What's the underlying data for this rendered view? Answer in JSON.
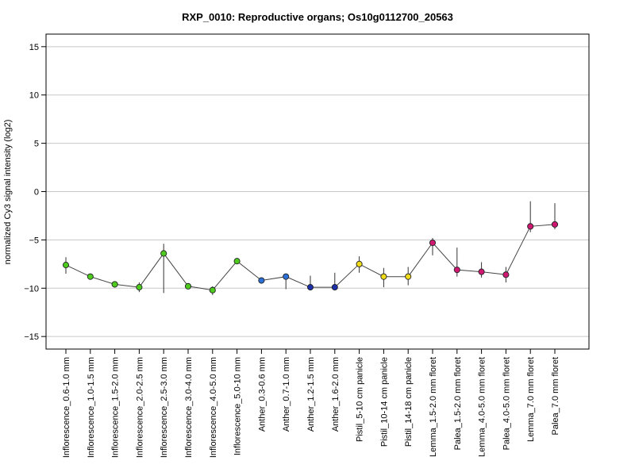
{
  "chart_data": {
    "type": "line",
    "title": "RXP_0010: Reproductive organs; Os10g0112700_20563",
    "xlabel": "",
    "ylabel": "normalized Cy3 signal intensity (log2)",
    "ylim": [
      -16.3,
      16.3
    ],
    "yticks": [
      -15,
      -10,
      -5,
      0,
      5,
      10,
      15
    ],
    "grid": true,
    "categories": [
      "Inflorescence_0.6-1.0 mm",
      "Inflorescence_1.0-1.5 mm",
      "Inflorescence_1.5-2.0 mm",
      "Inflorescence_2.0-2.5 mm",
      "Inflorescence_2.5-3.0 mm",
      "Inflorescence_3.0-4.0 mm",
      "Inflorescence_4.0-5.0 mm",
      "Inflorescence_5.0-10 mm",
      "Anther_0.3-0.6 mm",
      "Anther_0.7-1.0 mm",
      "Anther_1.2-1.5 mm",
      "Anther_1.6-2.0 mm",
      "Pistil_5-10 cm panicle",
      "Pistil_10-14 cm panicle",
      "Pistil_14-18 cm panicle",
      "Lemma_1.5-2.0 mm floret",
      "Palea_1.5-2.0 mm floret",
      "Lemma_4.0-5.0 mm floret",
      "Palea_4.0-5.0 mm floret",
      "Lemma_7.0 mm floret",
      "Palea_7.0 mm floret"
    ],
    "values": [
      -7.6,
      -8.8,
      -9.6,
      -9.9,
      -6.4,
      -9.8,
      -10.2,
      -7.2,
      -9.2,
      -8.8,
      -9.9,
      -9.9,
      -7.5,
      -8.8,
      -8.8,
      -5.3,
      -8.1,
      -8.3,
      -8.6,
      -3.6,
      -3.4
    ],
    "err_upper": [
      -6.8,
      -8.7,
      -9.5,
      -9.4,
      -5.4,
      -9.7,
      -9.8,
      -7.0,
      -9.0,
      -8.5,
      -8.7,
      -8.4,
      -6.7,
      -7.9,
      -7.8,
      -4.8,
      -5.8,
      -7.3,
      -7.8,
      -1.0,
      -1.2
    ],
    "err_lower": [
      -8.5,
      -9.0,
      -9.7,
      -10.4,
      -10.5,
      -10.0,
      -10.7,
      -7.4,
      -9.4,
      -10.1,
      -10.0,
      -10.0,
      -8.4,
      -9.9,
      -9.7,
      -6.6,
      -8.8,
      -8.9,
      -9.4,
      -4.2,
      -3.9
    ],
    "colors": [
      "#4dcc1f",
      "#4dcc1f",
      "#4dcc1f",
      "#4dcc1f",
      "#4dcc1f",
      "#4dcc1f",
      "#4dcc1f",
      "#4dcc1f",
      "#2a6ed6",
      "#2a6ed6",
      "#1b2fa8",
      "#1b2fa8",
      "#f0dc1a",
      "#f0dc1a",
      "#f0dc1a",
      "#d01873",
      "#d01873",
      "#d01873",
      "#d01873",
      "#d01873",
      "#d01873"
    ]
  }
}
